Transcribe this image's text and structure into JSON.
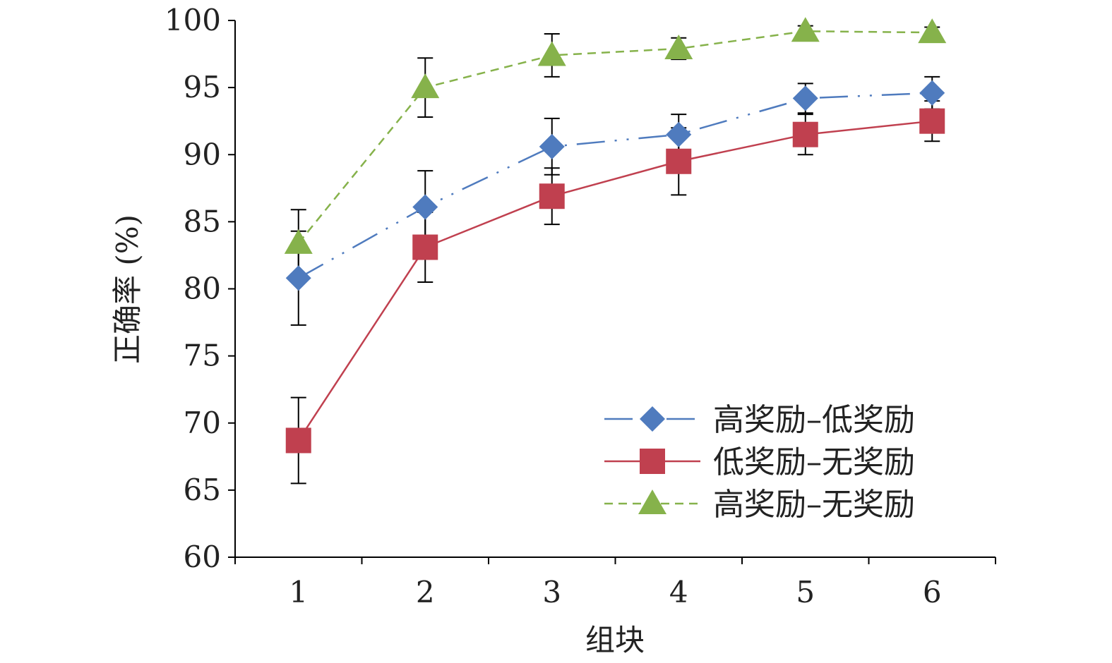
{
  "chart_data": {
    "type": "line",
    "title": "",
    "xlabel": "组块",
    "ylabel": "正确率 (%)",
    "categories": [
      "1",
      "2",
      "3",
      "4",
      "5",
      "6"
    ],
    "x": [
      1,
      2,
      3,
      4,
      5,
      6
    ],
    "xlim": [
      0.5,
      6.5
    ],
    "ylim": [
      60,
      100
    ],
    "yticks": [
      "60",
      "65",
      "70",
      "75",
      "80",
      "85",
      "90",
      "95",
      "100"
    ],
    "grid": false,
    "legend_position": "bottom-right",
    "series": [
      {
        "name": "高奖励–低奖励",
        "color": "#4F7BBE",
        "marker": "diamond",
        "line": "dash-dot",
        "values": [
          80.8,
          86.1,
          90.6,
          91.5,
          94.2,
          94.6
        ],
        "error": [
          3.5,
          2.7,
          2.1,
          1.5,
          1.1,
          1.2
        ]
      },
      {
        "name": "低奖励–无奖励",
        "color": "#C0404F",
        "marker": "square",
        "line": "solid",
        "values": [
          68.7,
          83.1,
          86.9,
          89.5,
          91.5,
          92.5
        ],
        "error": [
          3.2,
          2.6,
          2.1,
          2.5,
          1.5,
          1.5
        ]
      },
      {
        "name": "高奖励–无奖励",
        "color": "#86B24B",
        "marker": "triangle",
        "line": "dashed",
        "values": [
          83.4,
          95.0,
          97.4,
          97.9,
          99.2,
          99.1
        ],
        "error": [
          2.5,
          2.2,
          1.6,
          0.8,
          0.4,
          0.4
        ]
      }
    ]
  }
}
